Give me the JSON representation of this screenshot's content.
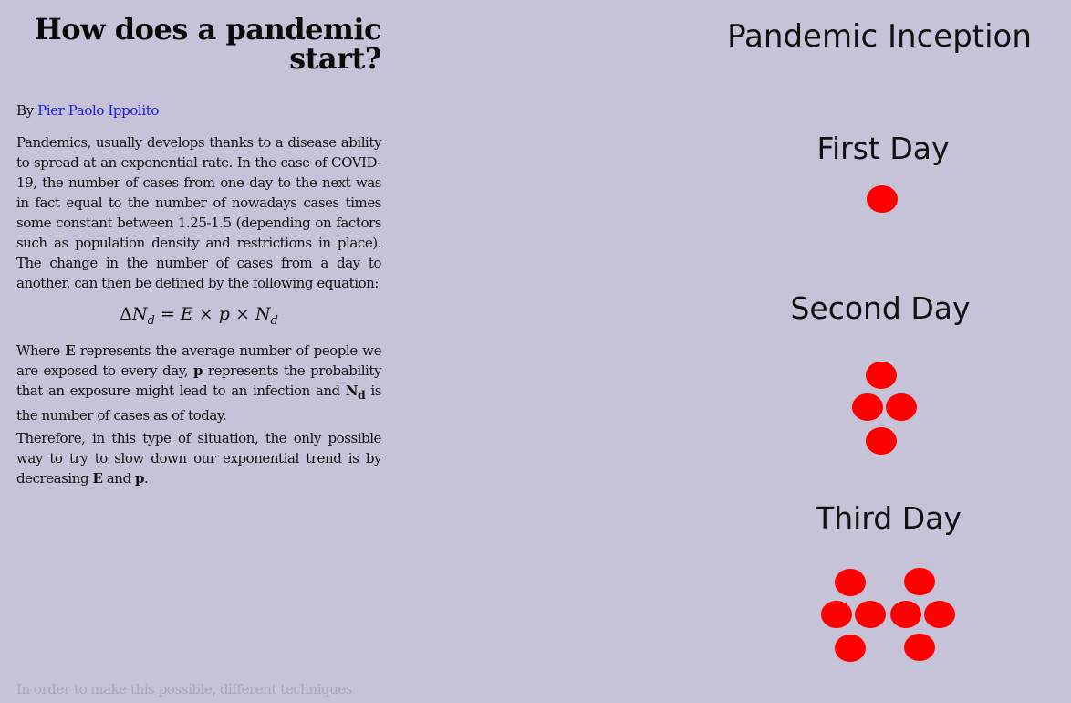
{
  "article": {
    "title": "How does a pandemic start?",
    "byline_prefix": "By",
    "author": "Pier Paolo Ippolito",
    "intro": "Pandemics, usually develops thanks to a disease ability to spread at an exponential rate. In the case of COVID-19, the number of cases from one day to the next was in fact equal to the number of nowadays cases times some constant between 1.25-1.5 (depending on factors such as population density and restrictions in place). The change in the number of cases from a day to another, can then be defined by the following equation:",
    "equation": {
      "delta": "Δ",
      "lhs_var": "N",
      "sub": "d",
      "equals": "=",
      "e": "E",
      "times": "×",
      "p": "p",
      "rhs_var": "N"
    },
    "where_para": {
      "w1": "Where",
      "e": "E",
      "w2": "represents the average number of people we are exposed to every day,",
      "p": "p",
      "w3": "represents the probability that an exposure might lead to an infection and",
      "n": "N",
      "n_sub": "d",
      "w4": "is the number of cases as of today."
    },
    "therefore_para": {
      "w1": "Therefore, in this type of situation, the only possible way to try to slow down our exponential trend is by decreasing",
      "e": "E",
      "and": "and",
      "p": "p",
      "end": "."
    },
    "faded_text": "In order to make this possible, different techniques"
  },
  "diagram": {
    "title": "Pandemic Inception",
    "dot_color": "#ff0000",
    "days": [
      {
        "label": "First Day",
        "cases": 1
      },
      {
        "label": "Second Day",
        "cases": 4
      },
      {
        "label": "Third Day",
        "cases": 8
      }
    ]
  }
}
